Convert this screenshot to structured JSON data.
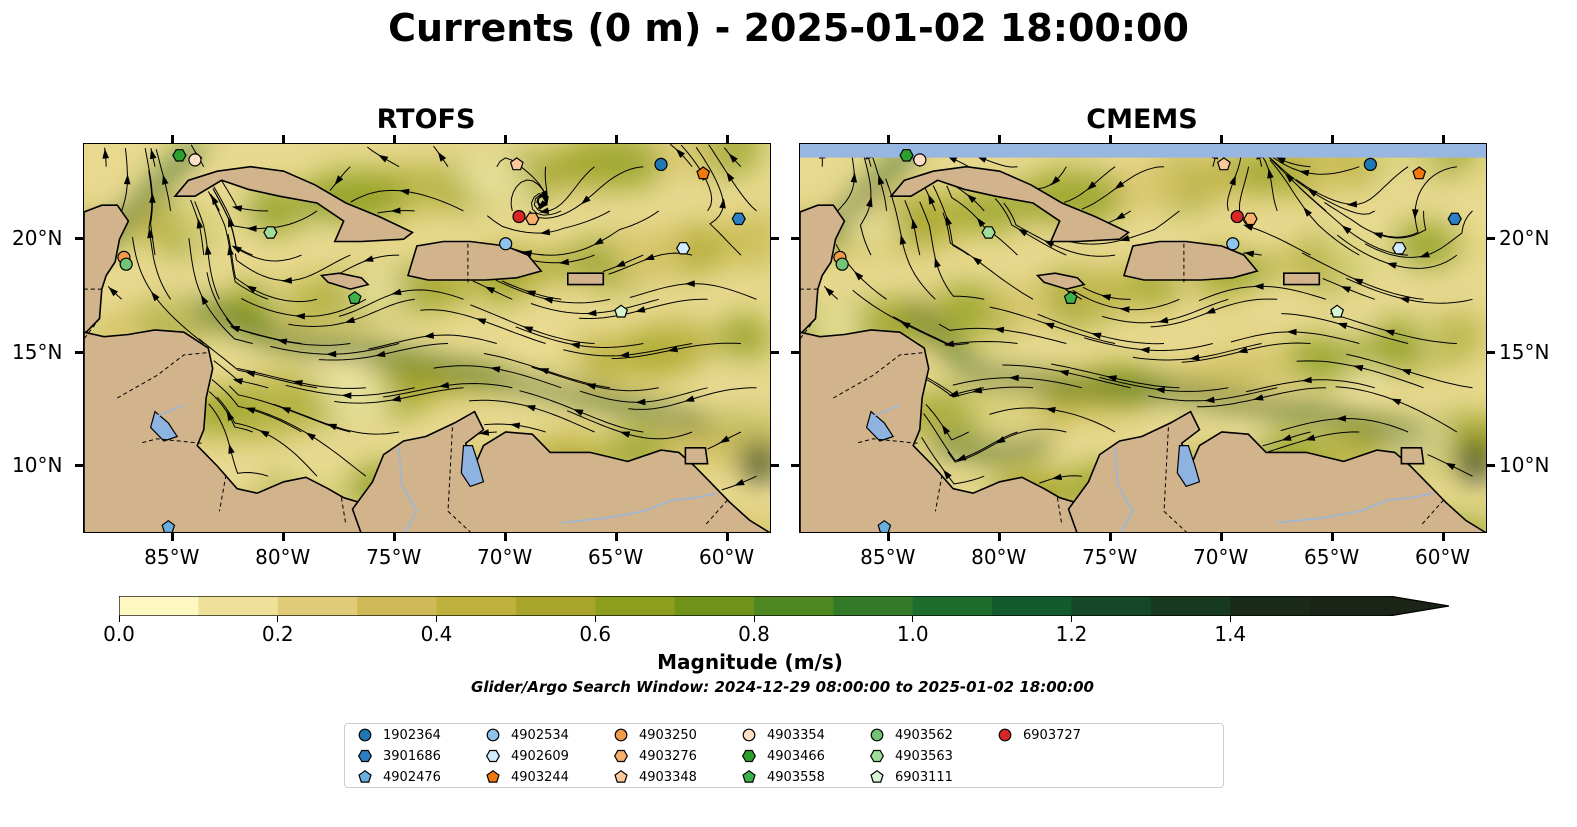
{
  "title": "Currents (0 m) - 2025-01-02 18:00:00",
  "panels": [
    {
      "title": "RTOFS"
    },
    {
      "title": "CMEMS"
    }
  ],
  "map": {
    "lon_range": [
      -89,
      -58
    ],
    "lat_range": [
      7,
      24.2
    ],
    "lon_ticks": [
      "85°W",
      "80°W",
      "75°W",
      "70°W",
      "65°W",
      "60°W"
    ],
    "lat_ticks": [
      "20°N",
      "15°N",
      "10°N"
    ],
    "colors": {
      "land": "#d2b48c",
      "lake": "#8fb3e0",
      "ocean_low": "#f7eeb6",
      "ocean_high": "#1b2f16",
      "coast": "#000000"
    }
  },
  "colorbar": {
    "title": "Magnitude (m/s)",
    "labels": [
      "0.0",
      "0.2",
      "0.4",
      "0.6",
      "0.8",
      "1.0",
      "1.2",
      "1.4"
    ],
    "colors": [
      "#fdf7c2",
      "#efe19a",
      "#e0cc78",
      "#d0ba58",
      "#bfb13e",
      "#a8a52a",
      "#8c9e1c",
      "#6e9318",
      "#4f8820",
      "#327a28",
      "#1e6d2e",
      "#135a2c",
      "#144826",
      "#17391f",
      "#1a2c19",
      "#1b2416"
    ],
    "extend": "max"
  },
  "note": "Glider/Argo Search Window: 2024-12-29 08:00:00 to 2025-01-02 18:00:00",
  "legend": [
    {
      "id": "1902364",
      "shape": "circle",
      "color": "#1f77b4"
    },
    {
      "id": "3901686",
      "shape": "hexagon",
      "color": "#2b7fc2"
    },
    {
      "id": "4902476",
      "shape": "pentagon",
      "color": "#6aaee0"
    },
    {
      "id": "4902534",
      "shape": "circle",
      "color": "#8ec3ee"
    },
    {
      "id": "4902609",
      "shape": "hexagon",
      "color": "#d3ebff"
    },
    {
      "id": "4903244",
      "shape": "pentagon",
      "color": "#f2770c"
    },
    {
      "id": "4903250",
      "shape": "circle",
      "color": "#f39a4a"
    },
    {
      "id": "4903276",
      "shape": "hexagon",
      "color": "#f7b06b"
    },
    {
      "id": "4903348",
      "shape": "pentagon",
      "color": "#fac89a"
    },
    {
      "id": "4903354",
      "shape": "circle",
      "color": "#fde0c5"
    },
    {
      "id": "4903466",
      "shape": "hexagon",
      "color": "#2ca02c"
    },
    {
      "id": "4903558",
      "shape": "pentagon",
      "color": "#3cb34a"
    },
    {
      "id": "4903562",
      "shape": "circle",
      "color": "#74c476"
    },
    {
      "id": "4903563",
      "shape": "hexagon",
      "color": "#a1dd9a"
    },
    {
      "id": "6903111",
      "shape": "pentagon",
      "color": "#d4f7d0"
    },
    {
      "id": "6903727",
      "shape": "circle",
      "color": "#d62728"
    }
  ],
  "floats_rtofs": [
    {
      "id": "1902364",
      "lon": -63.0,
      "lat": 23.3
    },
    {
      "id": "4903244",
      "lon": -61.1,
      "lat": 22.9
    },
    {
      "id": "3901686",
      "lon": -59.5,
      "lat": 20.9
    },
    {
      "id": "4902609",
      "lon": -62.0,
      "lat": 19.6
    },
    {
      "id": "6903111",
      "lon": -64.8,
      "lat": 16.8
    },
    {
      "id": "4903348",
      "lon": -69.5,
      "lat": 23.3
    },
    {
      "id": "6903727",
      "lon": -69.4,
      "lat": 21.0
    },
    {
      "id": "4903276",
      "lon": -68.8,
      "lat": 20.9
    },
    {
      "id": "4902534",
      "lon": -70.0,
      "lat": 19.8
    },
    {
      "id": "4903466",
      "lon": -84.7,
      "lat": 23.7
    },
    {
      "id": "4903354",
      "lon": -84.0,
      "lat": 23.5
    },
    {
      "id": "4903563",
      "lon": -80.6,
      "lat": 20.3
    },
    {
      "id": "4903558",
      "lon": -76.8,
      "lat": 17.4
    },
    {
      "id": "4903250",
      "lon": -87.2,
      "lat": 19.2
    },
    {
      "id": "4903562",
      "lon": -87.1,
      "lat": 18.9
    },
    {
      "id": "4902476",
      "lon": -85.2,
      "lat": 7.3
    }
  ],
  "floats_cmems": [
    {
      "id": "1902364",
      "lon": -63.3,
      "lat": 23.3
    },
    {
      "id": "4903244",
      "lon": -61.1,
      "lat": 22.9
    },
    {
      "id": "3901686",
      "lon": -59.5,
      "lat": 20.9
    },
    {
      "id": "4902609",
      "lon": -62.0,
      "lat": 19.6
    },
    {
      "id": "6903111",
      "lon": -64.8,
      "lat": 16.8
    },
    {
      "id": "4903348",
      "lon": -69.9,
      "lat": 23.3
    },
    {
      "id": "6903727",
      "lon": -69.3,
      "lat": 21.0
    },
    {
      "id": "4903276",
      "lon": -68.7,
      "lat": 20.9
    },
    {
      "id": "4902534",
      "lon": -69.5,
      "lat": 19.8
    },
    {
      "id": "4903466",
      "lon": -84.2,
      "lat": 23.7
    },
    {
      "id": "4903354",
      "lon": -83.6,
      "lat": 23.5
    },
    {
      "id": "4903563",
      "lon": -80.5,
      "lat": 20.3
    },
    {
      "id": "4903558",
      "lon": -76.8,
      "lat": 17.4
    },
    {
      "id": "4903250",
      "lon": -87.2,
      "lat": 19.2
    },
    {
      "id": "4903562",
      "lon": -87.1,
      "lat": 18.9
    },
    {
      "id": "4902476",
      "lon": -85.2,
      "lat": 7.3
    }
  ]
}
